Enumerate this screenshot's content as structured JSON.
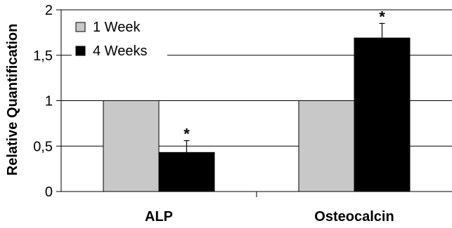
{
  "chart_data": {
    "type": "bar",
    "categories": [
      "ALP",
      "Osteocalcin"
    ],
    "series": [
      {
        "name": "1 Week",
        "values": [
          1,
          1
        ],
        "errors": [
          0,
          0
        ],
        "significance": [
          "",
          ""
        ],
        "color": "#c8c8c8"
      },
      {
        "name": "4 Weeks",
        "values": [
          0.43,
          1.69
        ],
        "errors": [
          0.13,
          0.16
        ],
        "significance": [
          "*",
          "*"
        ],
        "color": "#000000"
      }
    ],
    "ylabel": "Relative Quantification",
    "ylim": [
      0,
      2
    ],
    "yticks": [
      0,
      0.5,
      1,
      1.5,
      2
    ],
    "ytick_labels": [
      "0",
      "0,5",
      "1",
      "1,5",
      "2"
    ],
    "grid": true,
    "legend_position": "top-left"
  }
}
